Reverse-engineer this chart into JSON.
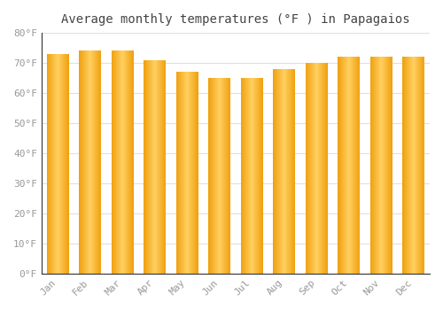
{
  "title": "Average monthly temperatures (°F ) in Papagaios",
  "months": [
    "Jan",
    "Feb",
    "Mar",
    "Apr",
    "May",
    "Jun",
    "Jul",
    "Aug",
    "Sep",
    "Oct",
    "Nov",
    "Dec"
  ],
  "values": [
    73,
    74,
    74,
    71,
    67,
    65,
    65,
    68,
    70,
    72,
    72,
    72
  ],
  "ylim": [
    0,
    80
  ],
  "yticks": [
    0,
    10,
    20,
    30,
    40,
    50,
    60,
    70,
    80
  ],
  "ytick_labels": [
    "0°F",
    "10°F",
    "20°F",
    "30°F",
    "40°F",
    "50°F",
    "60°F",
    "70°F",
    "80°F"
  ],
  "bar_color_center": "#FFD060",
  "bar_color_edge": "#F0A010",
  "background_color": "#FFFFFF",
  "plot_bg_color": "#FFFFFF",
  "grid_color": "#e0e0e0",
  "title_fontsize": 10,
  "tick_fontsize": 8,
  "font_family": "monospace",
  "bar_width": 0.68,
  "n_gradient_steps": 50
}
